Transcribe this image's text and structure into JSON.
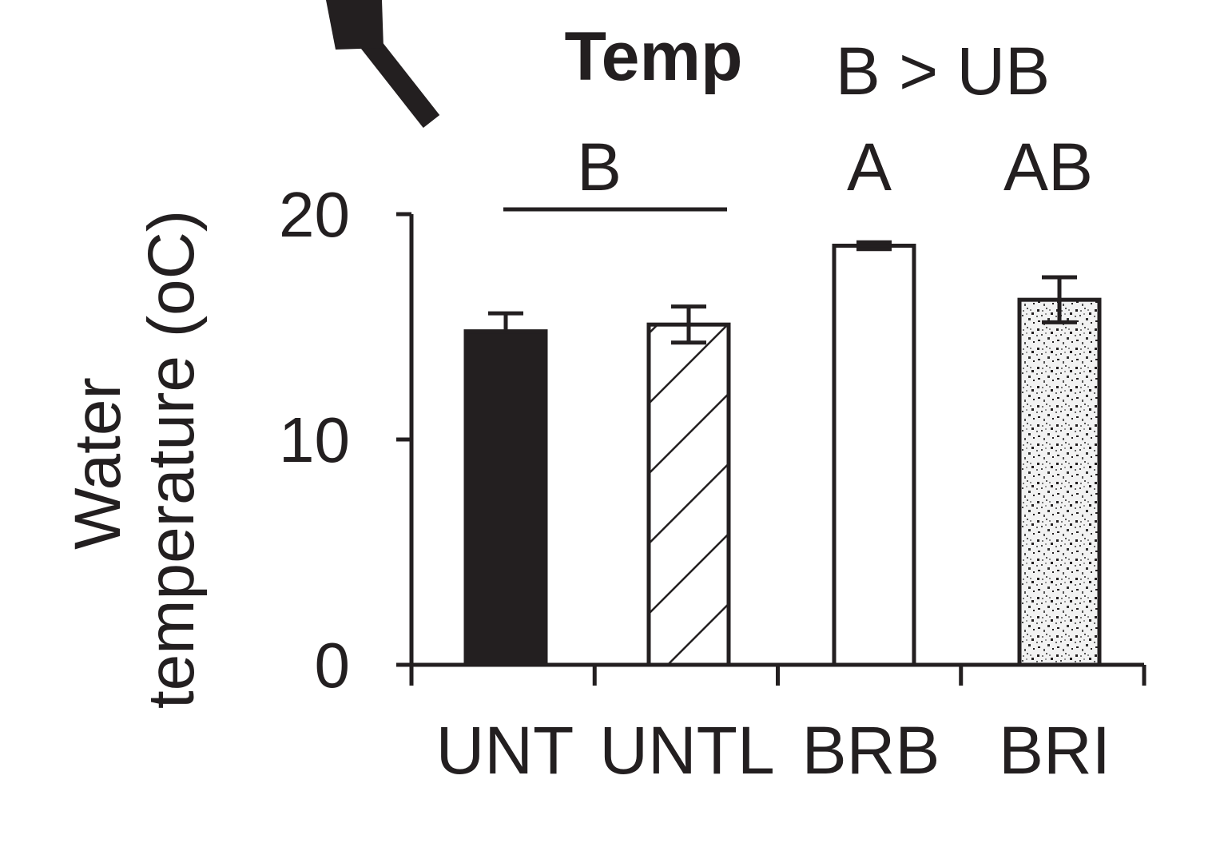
{
  "chart_data": {
    "type": "bar",
    "title": "Temp",
    "comparison": "B > UB",
    "categories": [
      "UNT",
      "UNTL",
      "BRB",
      "BRI"
    ],
    "values": [
      14.8,
      15.1,
      18.6,
      16.2
    ],
    "errors": [
      0.8,
      0.8,
      0.15,
      1.0
    ],
    "group_letters": [
      "B",
      "A",
      "AB"
    ],
    "fills": [
      "solid",
      "hatched",
      "open",
      "stippled"
    ],
    "ylabel_line1": "Water",
    "ylabel_line2": "temperature (oC)",
    "yticks": [
      "0",
      "10",
      "20"
    ],
    "ylim": [
      0,
      20
    ],
    "grid": false,
    "colors": {
      "ink": "#231f20",
      "background": "#ffffff"
    }
  }
}
